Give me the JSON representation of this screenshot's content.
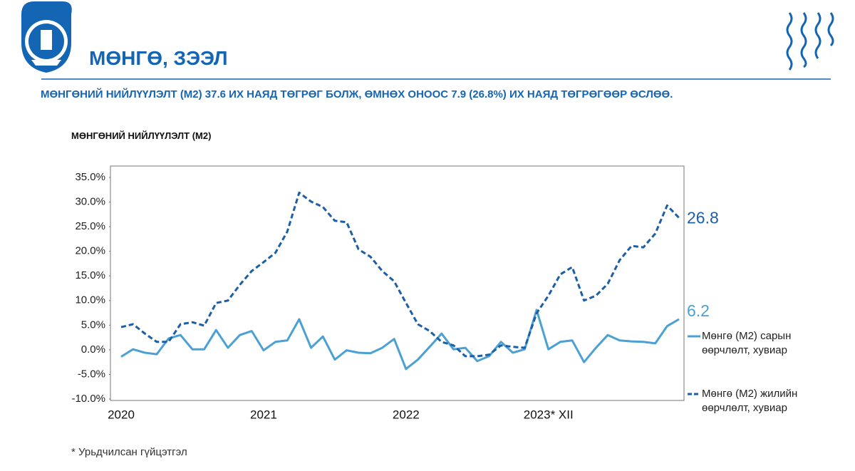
{
  "header": {
    "title": "МӨНГӨ, ЗЭЭЛ",
    "subtitle": "МӨНГӨНИЙ НИЙЛҮҮЛЭЛТ (M2) 37.6 ИХ НАЯД ТӨГРӨГ БОЛЖ, ӨМНӨХ ОНООС 7.9 (26.8%) ИХ НАЯД ТӨГРӨГӨӨР ӨСЛӨӨ."
  },
  "chart_data": {
    "type": "line",
    "title": "МӨНГӨНИЙ НИЙЛҮҮЛЭЛТ (M2)",
    "categories": [
      "2020",
      null,
      null,
      null,
      null,
      null,
      null,
      null,
      null,
      null,
      null,
      null,
      "2021",
      null,
      null,
      null,
      null,
      null,
      null,
      null,
      null,
      null,
      null,
      null,
      "2022",
      null,
      null,
      null,
      null,
      null,
      null,
      null,
      null,
      null,
      null,
      null,
      "2023* XII",
      null,
      null,
      null,
      null,
      null,
      null,
      null,
      null,
      null,
      null,
      null
    ],
    "series": [
      {
        "name": "Мөнгө (M2) сарын өөрчлөлт, хувиар",
        "color": "#4ba0d4",
        "dashed": false,
        "values": [
          -1.4,
          0.1,
          -0.6,
          -0.9,
          2.3,
          3.0,
          0.1,
          0.1,
          4.0,
          0.4,
          3.0,
          3.8,
          -0.1,
          1.6,
          1.9,
          6.2,
          0.4,
          2.7,
          -2.0,
          -0.1,
          -0.6,
          -0.7,
          0.4,
          2.2,
          -3.9,
          -2.0,
          0.6,
          3.3,
          0.1,
          0.4,
          -2.3,
          -1.3,
          1.6,
          -0.6,
          0.1,
          8.1,
          0.1,
          1.6,
          1.9,
          -2.5,
          0.4,
          3.0,
          1.9,
          1.7,
          1.6,
          1.3,
          4.8,
          6.2
        ]
      },
      {
        "name": "Мөнгө (M2) жилийн өөрчлөлт, хувиар",
        "color": "#1c5fa6",
        "dashed": true,
        "values": [
          4.6,
          5.2,
          3.3,
          1.6,
          1.6,
          5.2,
          5.6,
          4.9,
          9.5,
          10.0,
          13.2,
          16.0,
          17.8,
          19.7,
          24.0,
          31.9,
          30.1,
          29.0,
          26.2,
          25.9,
          20.4,
          18.9,
          16.0,
          13.9,
          9.5,
          5.2,
          3.8,
          1.6,
          0.9,
          -1.3,
          -1.3,
          -1.0,
          0.9,
          0.6,
          0.4,
          7.4,
          11.0,
          15.3,
          16.8,
          10.0,
          11.0,
          13.4,
          18.2,
          21.1,
          20.8,
          23.6,
          29.3,
          26.8
        ]
      }
    ],
    "ylim": [
      -10,
      35
    ],
    "yticks": [
      {
        "value": -10,
        "label": "-10.0%"
      },
      {
        "value": -5,
        "label": "-5.0%"
      },
      {
        "value": 0,
        "label": "0.0%"
      },
      {
        "value": 5,
        "label": "5.0%"
      },
      {
        "value": 10,
        "label": "10.0%"
      },
      {
        "value": 15,
        "label": "15.0%"
      },
      {
        "value": 20,
        "label": "20.0%"
      },
      {
        "value": 25,
        "label": "25.0%"
      },
      {
        "value": 30,
        "label": "30.0%"
      },
      {
        "value": 35,
        "label": "35.0%"
      }
    ],
    "grid": false,
    "end_labels": true,
    "legend": "right"
  },
  "footnote": "* Урьдчилсан гүйцэтгэл"
}
